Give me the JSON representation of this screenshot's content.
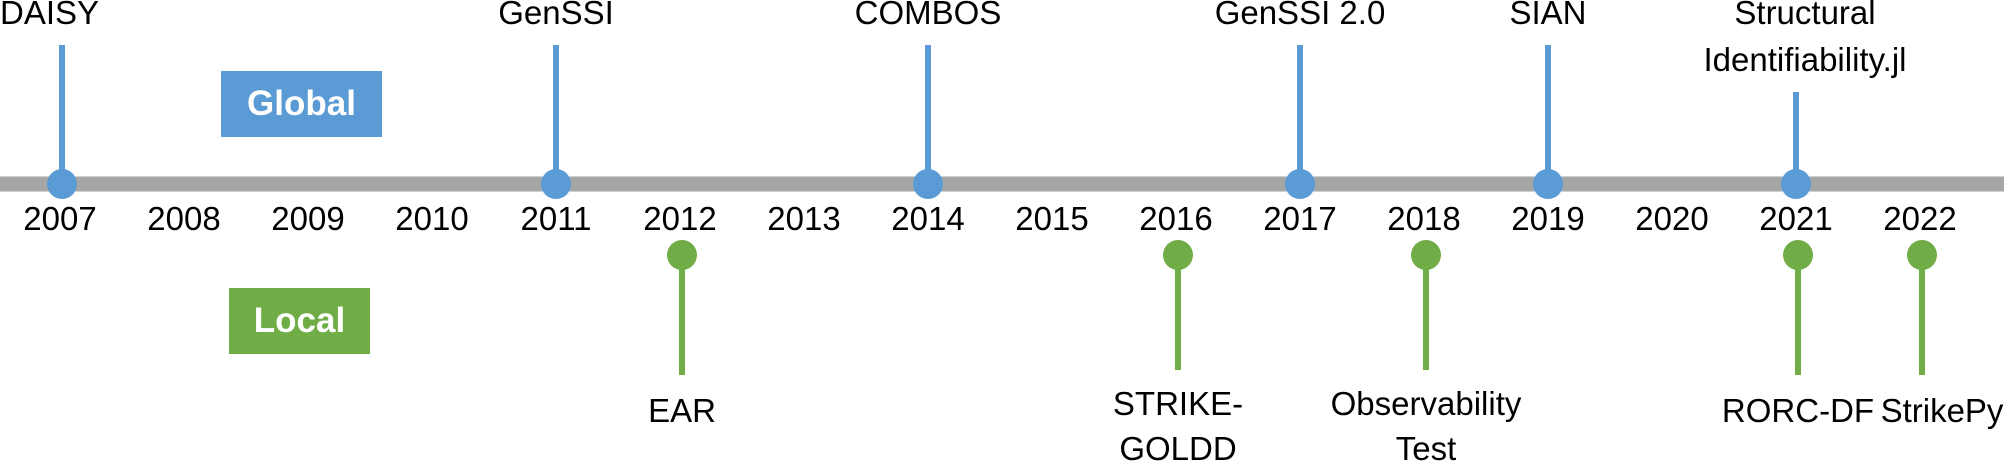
{
  "legend": {
    "global": {
      "label": "Global",
      "color": "#5B9BD5"
    },
    "local": {
      "label": "Local",
      "color": "#70AD47"
    }
  },
  "axis_color": "#A6A6A6",
  "years": [
    "2007",
    "2008",
    "2009",
    "2010",
    "2011",
    "2012",
    "2013",
    "2014",
    "2015",
    "2016",
    "2017",
    "2018",
    "2019",
    "2020",
    "2021",
    "2022"
  ],
  "global_tools": [
    {
      "year": "2007",
      "lines": [
        "DAISY"
      ]
    },
    {
      "year": "2011",
      "lines": [
        "GenSSI"
      ]
    },
    {
      "year": "2014",
      "lines": [
        "COMBOS"
      ]
    },
    {
      "year": "2017",
      "lines": [
        "GenSSI 2.0"
      ]
    },
    {
      "year": "2019",
      "lines": [
        "SIAN"
      ]
    },
    {
      "year": "2021",
      "lines": [
        "Structural",
        "Identifiability.jl"
      ]
    }
  ],
  "local_tools": [
    {
      "year": "2012",
      "lines": [
        "EAR"
      ]
    },
    {
      "year": "2016",
      "lines": [
        "STRIKE-",
        "GOLDD"
      ]
    },
    {
      "year": "2018",
      "lines": [
        "Observability",
        "Test"
      ]
    },
    {
      "year": "2021",
      "lines": [
        "RORC-DF"
      ]
    },
    {
      "year": "2022",
      "lines": [
        "StrikePy"
      ]
    }
  ]
}
